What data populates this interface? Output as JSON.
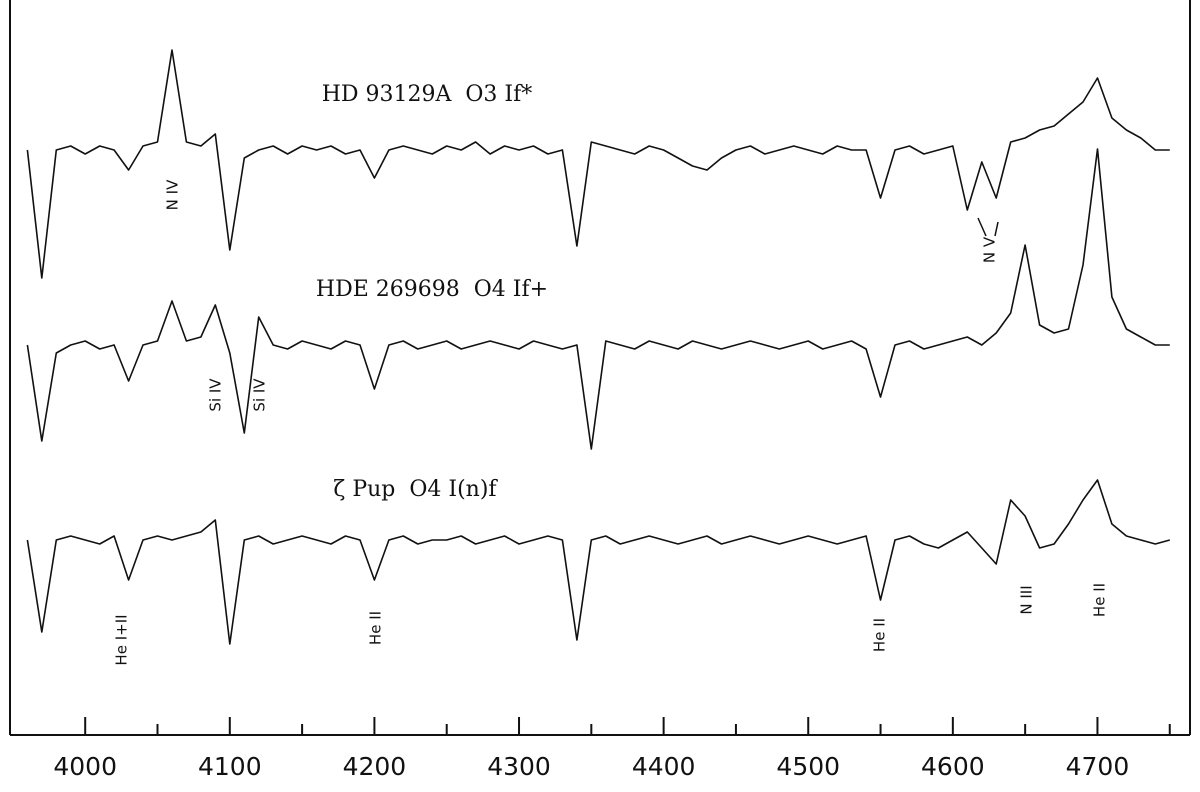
{
  "chart_data": {
    "type": "line",
    "x": [
      3960,
      3970,
      3980,
      3990,
      4000,
      4010,
      4020,
      4030,
      4040,
      4050,
      4060,
      4070,
      4080,
      4090,
      4100,
      4110,
      4120,
      4130,
      4140,
      4150,
      4160,
      4170,
      4180,
      4190,
      4200,
      4210,
      4220,
      4230,
      4240,
      4250,
      4260,
      4270,
      4280,
      4290,
      4300,
      4310,
      4320,
      4330,
      4340,
      4350,
      4360,
      4370,
      4380,
      4390,
      4400,
      4410,
      4420,
      4430,
      4440,
      4450,
      4460,
      4470,
      4480,
      4490,
      4500,
      4510,
      4520,
      4530,
      4540,
      4550,
      4560,
      4570,
      4580,
      4590,
      4600,
      4610,
      4620,
      4630,
      4640,
      4650,
      4660,
      4670,
      4680,
      4690,
      4700,
      4710,
      4720,
      4730,
      4740,
      4750
    ],
    "series": [
      {
        "name": "HD 93129A  O3 If*",
        "color": "#111111",
        "values": [
          1.0,
          0.68,
          1.0,
          1.01,
          0.99,
          1.01,
          1.0,
          0.95,
          1.01,
          1.02,
          1.25,
          1.02,
          1.01,
          1.04,
          0.75,
          0.98,
          1.0,
          1.01,
          0.99,
          1.01,
          1.0,
          1.01,
          0.99,
          1.0,
          0.93,
          1.0,
          1.01,
          1.0,
          0.99,
          1.01,
          1.0,
          1.02,
          0.99,
          1.01,
          1.0,
          1.01,
          0.99,
          1.0,
          0.76,
          1.02,
          1.01,
          1.0,
          0.99,
          1.01,
          1.0,
          0.98,
          0.96,
          0.95,
          0.98,
          1.0,
          1.01,
          0.99,
          1.0,
          1.01,
          1.0,
          0.99,
          1.01,
          1.0,
          1.0,
          0.88,
          1.0,
          1.01,
          0.99,
          1.0,
          1.01,
          0.85,
          0.97,
          0.88,
          1.02,
          1.03,
          1.05,
          1.06,
          1.09,
          1.12,
          1.18,
          1.08,
          1.05,
          1.03,
          1.0,
          1.0
        ]
      },
      {
        "name": "HDE 269698  O4 If+",
        "color": "#111111",
        "values": [
          1.0,
          0.76,
          0.98,
          1.0,
          1.01,
          0.99,
          1.0,
          0.91,
          1.0,
          1.01,
          1.11,
          1.01,
          1.02,
          1.1,
          0.98,
          0.78,
          1.07,
          1.0,
          0.99,
          1.01,
          1.0,
          0.99,
          1.01,
          1.0,
          0.89,
          1.0,
          1.01,
          0.99,
          1.0,
          1.01,
          0.99,
          1.0,
          1.01,
          1.0,
          0.99,
          1.01,
          1.0,
          0.99,
          1.0,
          0.74,
          1.01,
          1.0,
          0.99,
          1.01,
          1.0,
          0.99,
          1.01,
          1.0,
          0.99,
          1.0,
          1.01,
          1.0,
          0.99,
          1.0,
          1.01,
          0.99,
          1.0,
          1.01,
          0.99,
          0.87,
          1.0,
          1.01,
          0.99,
          1.0,
          1.01,
          1.02,
          1.0,
          1.03,
          1.08,
          1.25,
          1.05,
          1.03,
          1.04,
          1.2,
          1.49,
          1.12,
          1.04,
          1.02,
          1.0,
          1.0
        ]
      },
      {
        "name": "ζ Pup  O4 I(n)f",
        "color": "#111111",
        "values": [
          1.0,
          0.77,
          1.0,
          1.01,
          1.0,
          0.99,
          1.01,
          0.9,
          1.0,
          1.01,
          1.0,
          1.01,
          1.02,
          1.05,
          0.74,
          1.0,
          1.01,
          0.99,
          1.0,
          1.01,
          1.0,
          0.99,
          1.01,
          1.0,
          0.9,
          1.0,
          1.01,
          0.99,
          1.0,
          1.0,
          1.01,
          0.99,
          1.0,
          1.01,
          0.99,
          1.0,
          1.01,
          1.0,
          0.75,
          1.0,
          1.01,
          0.99,
          1.0,
          1.01,
          1.0,
          0.99,
          1.0,
          1.01,
          0.99,
          1.0,
          1.01,
          1.0,
          0.99,
          1.0,
          1.01,
          1.0,
          0.99,
          1.0,
          1.01,
          0.85,
          1.0,
          1.01,
          0.99,
          0.98,
          1.0,
          1.02,
          0.98,
          0.94,
          1.1,
          1.06,
          0.98,
          0.99,
          1.04,
          1.1,
          1.15,
          1.04,
          1.01,
          1.0,
          0.99,
          1.0
        ]
      }
    ],
    "annotations": [
      "N IV",
      "N V",
      "Si IV",
      "Si IV",
      "He I+II",
      "He II",
      "He II",
      "N III",
      "He II"
    ],
    "xlim": [
      3948,
      4764
    ],
    "xticks": [
      4000,
      4100,
      4200,
      4300,
      4400,
      4500,
      4600,
      4700
    ],
    "xminorticks": [
      4050,
      4150,
      4250,
      4350,
      4450,
      4550,
      4650,
      4750
    ]
  }
}
